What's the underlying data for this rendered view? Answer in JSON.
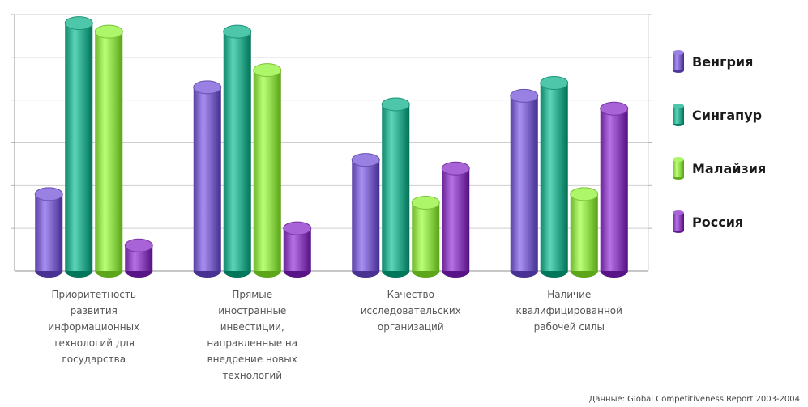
{
  "chart_data": {
    "type": "bar",
    "categories": [
      [
        "Приоритетность",
        "развития",
        "информационных",
        "технологий для",
        "государства"
      ],
      [
        "Прямые",
        "иностранные",
        "инвестиции,",
        "направленные на",
        "внедрение новых",
        "технологий"
      ],
      [
        "Качество",
        "исследовательских",
        "организаций"
      ],
      [
        "Наличие",
        "квалифицированной",
        "рабочей силы"
      ]
    ],
    "series": [
      {
        "name": "Венгрия",
        "values": [
          1.8,
          4.3,
          2.6,
          4.1
        ],
        "color": "#7b63c6"
      },
      {
        "name": "Сингапур",
        "values": [
          5.8,
          5.6,
          3.9,
          4.4
        ],
        "color": "#2fa88c"
      },
      {
        "name": "Малайзия",
        "values": [
          5.6,
          4.7,
          1.6,
          1.8
        ],
        "color": "#8fd84c"
      },
      {
        "name": "Россия",
        "values": [
          0.6,
          1.0,
          2.4,
          3.8
        ],
        "color": "#8a45b8"
      }
    ],
    "ylim": [
      0,
      6
    ],
    "grid": true,
    "legend_position": "right"
  },
  "source": "Данные: Global Competitiveness Report 2003-2004"
}
